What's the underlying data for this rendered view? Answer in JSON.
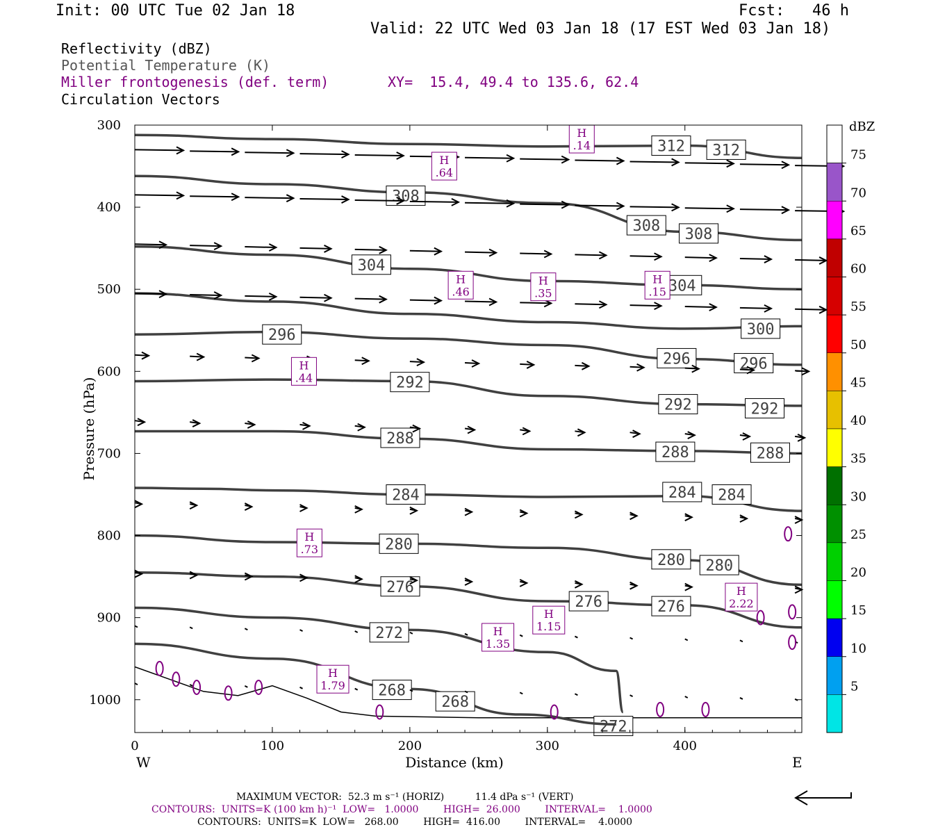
{
  "header": {
    "init": "Init: 00 UTC Tue 02 Jan 18",
    "fcst": "Fcst:   46 h",
    "valid": "Valid: 22 UTC Wed 03 Jan 18 (17 EST Wed 03 Jan 18)"
  },
  "legend": {
    "reflectivity": "Reflectivity (dBZ)",
    "theta": "Potential Temperature (K)",
    "frontogenesis": "Miller frontogenesis (def. term)",
    "xy": "XY=  15.4, 49.4 to 135.6, 62.4",
    "vectors": "Circulation Vectors"
  },
  "footer": {
    "max_vector": "MAXIMUM VECTOR:  52.3 m s⁻¹ (HORIZ)          11.4 dPa s⁻¹ (VERT)",
    "contours1": "CONTOURS:  UNITS=K (100 km h)⁻¹  LOW=   1.0000        HIGH=  26.000        INTERVAL=    1.0000",
    "contours2": "CONTOURS:  UNITS=K  LOW=   268.00        HIGH=  416.00        INTERVAL=    4.0000"
  },
  "colors": {
    "theta": "#404040",
    "frontogenesis": "#800080",
    "vector": "#000000"
  },
  "chart_data": {
    "type": "cross-section",
    "xlabel": "Distance (km)",
    "ylabel": "Pressure (hPa)",
    "x_ticks": [
      0,
      100,
      200,
      300,
      400
    ],
    "y_ticks": [
      300,
      400,
      500,
      600,
      700,
      800,
      900,
      1000
    ],
    "xlim": [
      0,
      485
    ],
    "ylim": [
      1040,
      300
    ],
    "left_end": "W",
    "right_end": "E",
    "colorbar": {
      "unit": "dBZ",
      "levels": [
        5,
        10,
        15,
        20,
        25,
        30,
        35,
        40,
        45,
        50,
        55,
        60,
        65,
        70,
        75
      ],
      "colors": [
        "#00e5e5",
        "#00a0f0",
        "#0000f0",
        "#00ff00",
        "#00d000",
        "#009000",
        "#007000",
        "#ffff00",
        "#e7c000",
        "#ff9000",
        "#ff0000",
        "#d60000",
        "#c00000",
        "#ff00ff",
        "#9955c9"
      ]
    },
    "isentropes": [
      {
        "theta": 312,
        "points": [
          [
            0,
            312
          ],
          [
            100,
            317
          ],
          [
            200,
            323
          ],
          [
            300,
            326
          ],
          [
            400,
            325
          ],
          [
            485,
            340
          ]
        ],
        "labels": [
          [
            390,
            325
          ],
          [
            430,
            330
          ]
        ]
      },
      {
        "theta": 308,
        "points": [
          [
            0,
            362
          ],
          [
            100,
            372
          ],
          [
            200,
            382
          ],
          [
            300,
            395
          ],
          [
            400,
            430
          ],
          [
            485,
            440
          ]
        ],
        "labels": [
          [
            197,
            386
          ],
          [
            372,
            422
          ],
          [
            410,
            432
          ]
        ]
      },
      {
        "theta": 304,
        "points": [
          [
            0,
            448
          ],
          [
            100,
            458
          ],
          [
            200,
            475
          ],
          [
            300,
            490
          ],
          [
            400,
            495
          ],
          [
            485,
            500
          ]
        ],
        "labels": [
          [
            172,
            470
          ],
          [
            398,
            495
          ]
        ]
      },
      {
        "theta": 300,
        "points": [
          [
            0,
            505
          ],
          [
            100,
            515
          ],
          [
            200,
            530
          ],
          [
            300,
            540
          ],
          [
            400,
            548
          ],
          [
            485,
            545
          ]
        ],
        "labels": [
          [
            455,
            548
          ]
        ]
      },
      {
        "theta": 296,
        "points": [
          [
            0,
            555
          ],
          [
            100,
            552
          ],
          [
            200,
            560
          ],
          [
            300,
            568
          ],
          [
            400,
            585
          ],
          [
            485,
            592
          ]
        ],
        "labels": [
          [
            107,
            555
          ],
          [
            394,
            584
          ],
          [
            450,
            590
          ]
        ]
      },
      {
        "theta": 292,
        "points": [
          [
            0,
            612
          ],
          [
            100,
            610
          ],
          [
            200,
            612
          ],
          [
            300,
            630
          ],
          [
            400,
            640
          ],
          [
            485,
            642
          ]
        ],
        "labels": [
          [
            200,
            613
          ],
          [
            395,
            640
          ],
          [
            458,
            645
          ]
        ]
      },
      {
        "theta": 288,
        "points": [
          [
            0,
            673
          ],
          [
            100,
            673
          ],
          [
            200,
            682
          ],
          [
            300,
            695
          ],
          [
            400,
            697
          ],
          [
            485,
            700
          ]
        ],
        "labels": [
          [
            193,
            681
          ],
          [
            393,
            698
          ],
          [
            462,
            699
          ]
        ]
      },
      {
        "theta": 284,
        "points": [
          [
            0,
            742
          ],
          [
            50,
            743
          ],
          [
            100,
            745
          ],
          [
            200,
            750
          ],
          [
            300,
            753
          ],
          [
            400,
            752
          ],
          [
            485,
            770
          ]
        ],
        "labels": [
          [
            197,
            750
          ],
          [
            398,
            747
          ],
          [
            434,
            750
          ]
        ]
      },
      {
        "theta": 280,
        "points": [
          [
            0,
            800
          ],
          [
            100,
            808
          ],
          [
            200,
            810
          ],
          [
            300,
            815
          ],
          [
            400,
            830
          ],
          [
            485,
            860
          ]
        ],
        "labels": [
          [
            192,
            810
          ],
          [
            390,
            829
          ],
          [
            425,
            836
          ]
        ]
      },
      {
        "theta": 276,
        "points": [
          [
            0,
            845
          ],
          [
            100,
            850
          ],
          [
            200,
            862
          ],
          [
            300,
            880
          ],
          [
            400,
            885
          ],
          [
            485,
            912
          ]
        ],
        "labels": [
          [
            193,
            862
          ],
          [
            330,
            880
          ],
          [
            390,
            886
          ]
        ]
      },
      {
        "theta": 272,
        "points": [
          [
            0,
            888
          ],
          [
            100,
            900
          ],
          [
            200,
            915
          ],
          [
            300,
            942
          ],
          [
            350,
            965
          ],
          [
            355,
            1015
          ]
        ],
        "labels": [
          [
            185,
            918
          ],
          [
            348,
            1032
          ]
        ]
      },
      {
        "theta": 268,
        "points": [
          [
            0,
            932
          ],
          [
            100,
            950
          ],
          [
            200,
            987
          ],
          [
            280,
            1018
          ],
          [
            350,
            1030
          ]
        ],
        "labels": [
          [
            187,
            988
          ],
          [
            233,
            1002
          ]
        ]
      }
    ],
    "frontogenesis_maxima": [
      {
        "label": "H",
        "value": ".14",
        "x": 325,
        "p": 317
      },
      {
        "label": "H",
        "value": ".64",
        "x": 225,
        "p": 350
      },
      {
        "label": "H",
        "value": ".46",
        "x": 237,
        "p": 495
      },
      {
        "label": "H",
        "value": ".35",
        "x": 297,
        "p": 497
      },
      {
        "label": "H",
        "value": ".15",
        "x": 380,
        "p": 495
      },
      {
        "label": "H",
        "value": ".44",
        "x": 123,
        "p": 600
      },
      {
        "label": "H",
        "value": ".73",
        "x": 127,
        "p": 809
      },
      {
        "label": "H",
        "value": "2.22",
        "x": 441,
        "p": 875
      },
      {
        "label": "H",
        "value": "1.15",
        "x": 301,
        "p": 903
      },
      {
        "label": "H",
        "value": "1.35",
        "x": 264,
        "p": 924
      },
      {
        "label": "H",
        "value": "1.79",
        "x": 144,
        "p": 975
      }
    ],
    "terrain_pressure": [
      [
        0,
        960
      ],
      [
        25,
        975
      ],
      [
        50,
        990
      ],
      [
        75,
        995
      ],
      [
        100,
        983
      ],
      [
        125,
        998
      ],
      [
        150,
        1015
      ],
      [
        175,
        1020
      ],
      [
        250,
        1022
      ],
      [
        485,
        1022
      ]
    ]
  }
}
